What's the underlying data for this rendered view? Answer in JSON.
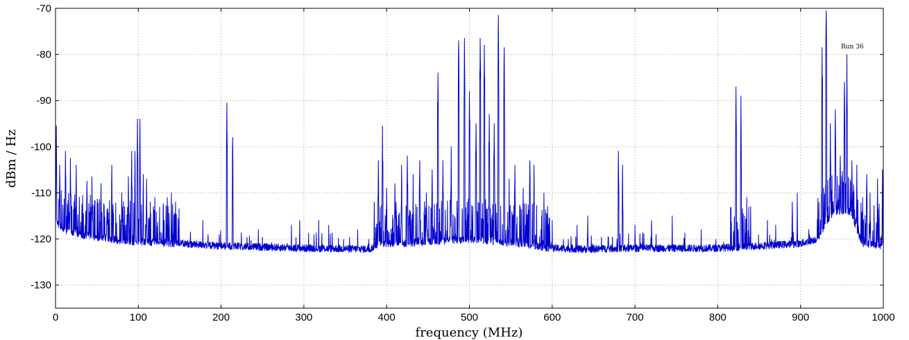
{
  "chart_data": {
    "type": "line",
    "title": "",
    "xlabel": "frequency (MHz)",
    "ylabel": "dBm / Hz",
    "xlim": [
      0,
      1000
    ],
    "ylim": [
      -135,
      -70
    ],
    "xticks": [
      0,
      100,
      200,
      300,
      400,
      500,
      600,
      700,
      800,
      900,
      1000
    ],
    "xtick_labels": [
      "0",
      "100",
      "200",
      "300",
      "400",
      "500",
      "600",
      "700",
      "800",
      "900",
      "1000"
    ],
    "yticks": [
      -130,
      -120,
      -110,
      -100,
      -90,
      -80,
      -70
    ],
    "ytick_labels": [
      "-130",
      "-120",
      "-110",
      "-100",
      "-90",
      "-80",
      "-70"
    ],
    "grid": true,
    "grid_style": "dotted",
    "line_color": "#0000cc",
    "annotation": "Run 36",
    "baseline": [
      [
        0,
        -116
      ],
      [
        10,
        -118
      ],
      [
        30,
        -119
      ],
      [
        60,
        -120
      ],
      [
        90,
        -120.5
      ],
      [
        150,
        -121
      ],
      [
        200,
        -121.5
      ],
      [
        300,
        -122
      ],
      [
        380,
        -122.2
      ],
      [
        390,
        -121
      ],
      [
        420,
        -121
      ],
      [
        460,
        -120.5
      ],
      [
        500,
        -120
      ],
      [
        560,
        -121
      ],
      [
        600,
        -122
      ],
      [
        640,
        -122.2
      ],
      [
        700,
        -122
      ],
      [
        800,
        -122
      ],
      [
        850,
        -121.5
      ],
      [
        900,
        -121
      ],
      [
        920,
        -120
      ],
      [
        940,
        -114
      ],
      [
        960,
        -114
      ],
      [
        975,
        -121
      ],
      [
        1000,
        -121.5
      ]
    ],
    "peaks": [
      [
        1,
        -95.5
      ],
      [
        5,
        -104
      ],
      [
        12,
        -101
      ],
      [
        18,
        -102.5
      ],
      [
        25,
        -104
      ],
      [
        38,
        -107.5
      ],
      [
        44,
        -106.5
      ],
      [
        55,
        -108
      ],
      [
        68,
        -104
      ],
      [
        80,
        -110
      ],
      [
        88,
        -106.5
      ],
      [
        92,
        -101
      ],
      [
        96,
        -101
      ],
      [
        99,
        -94
      ],
      [
        102,
        -94
      ],
      [
        106,
        -106
      ],
      [
        110,
        -107
      ],
      [
        120,
        -111
      ],
      [
        135,
        -111
      ],
      [
        140,
        -110
      ],
      [
        145,
        -112
      ],
      [
        178,
        -116
      ],
      [
        207,
        -90.5
      ],
      [
        214,
        -98
      ],
      [
        245,
        -118
      ],
      [
        285,
        -117
      ],
      [
        295,
        -116
      ],
      [
        318,
        -116
      ],
      [
        330,
        -117
      ],
      [
        365,
        -118
      ],
      [
        385,
        -112
      ],
      [
        390,
        -103
      ],
      [
        395,
        -95.5
      ],
      [
        400,
        -109
      ],
      [
        410,
        -108
      ],
      [
        418,
        -104
      ],
      [
        425,
        -102
      ],
      [
        432,
        -106
      ],
      [
        440,
        -103
      ],
      [
        448,
        -110
      ],
      [
        455,
        -105
      ],
      [
        462,
        -84
      ],
      [
        468,
        -103
      ],
      [
        478,
        -100
      ],
      [
        487,
        -77
      ],
      [
        494,
        -76.5
      ],
      [
        500,
        -88
      ],
      [
        508,
        -95
      ],
      [
        513,
        -76.5
      ],
      [
        518,
        -78
      ],
      [
        524,
        -93
      ],
      [
        530,
        -95
      ],
      [
        535,
        -71.5
      ],
      [
        542,
        -78.5
      ],
      [
        548,
        -107
      ],
      [
        555,
        -104
      ],
      [
        565,
        -109
      ],
      [
        573,
        -103
      ],
      [
        578,
        -104
      ],
      [
        590,
        -110
      ],
      [
        600,
        -116
      ],
      [
        630,
        -117
      ],
      [
        643,
        -115
      ],
      [
        680,
        -101
      ],
      [
        685,
        -104
      ],
      [
        700,
        -117
      ],
      [
        720,
        -116
      ],
      [
        745,
        -115
      ],
      [
        780,
        -118
      ],
      [
        822,
        -87
      ],
      [
        828,
        -89
      ],
      [
        835,
        -111
      ],
      [
        860,
        -116
      ],
      [
        870,
        -117
      ],
      [
        890,
        -112
      ],
      [
        896,
        -110
      ],
      [
        910,
        -118
      ],
      [
        926,
        -78.5
      ],
      [
        931,
        -70.5
      ],
      [
        936,
        -95
      ],
      [
        942,
        -92
      ],
      [
        948,
        -102
      ],
      [
        953,
        -86
      ],
      [
        956,
        -80
      ],
      [
        962,
        -103
      ],
      [
        968,
        -104
      ],
      [
        975,
        -111
      ],
      [
        980,
        -106
      ],
      [
        984,
        -110
      ],
      [
        993,
        -107
      ],
      [
        999,
        -105
      ]
    ]
  }
}
